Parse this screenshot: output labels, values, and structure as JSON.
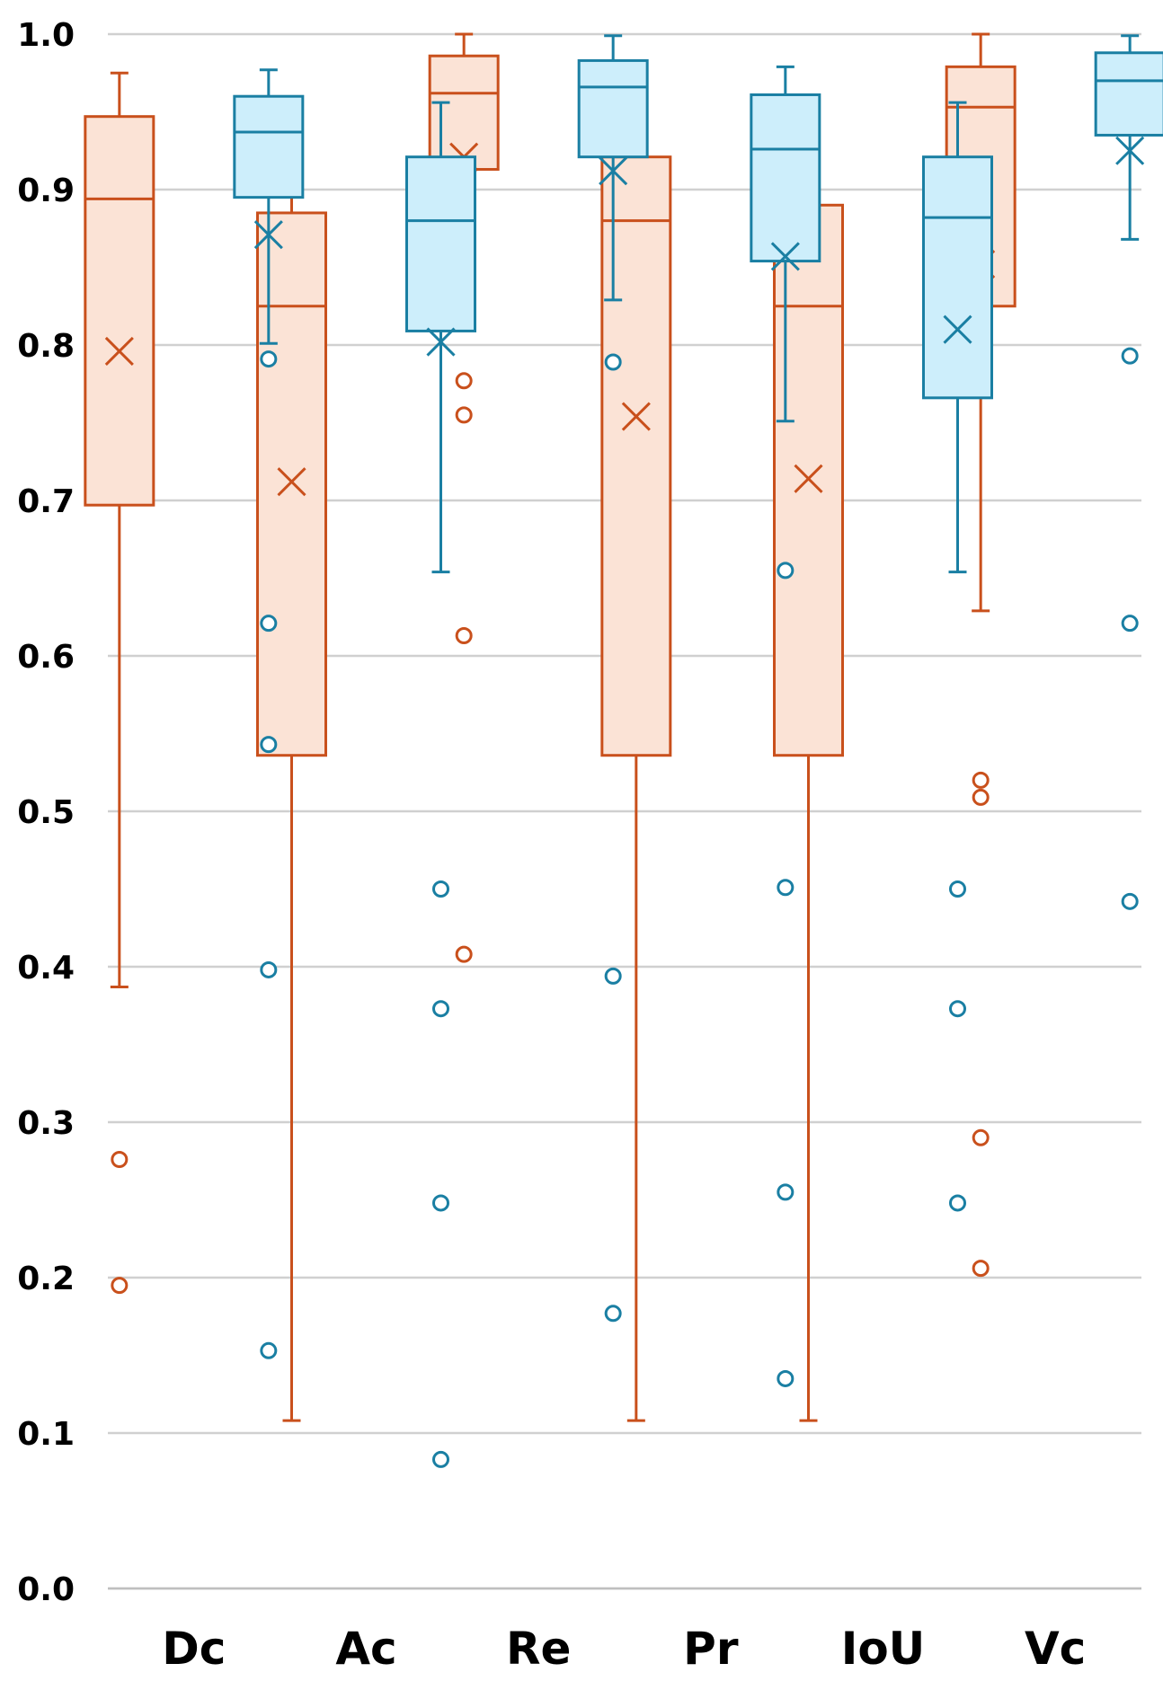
{
  "chart_data": {
    "type": "box",
    "categories": [
      "Dc",
      "Ac",
      "Re",
      "Pr",
      "IoU",
      "Vc"
    ],
    "ylim": [
      0.0,
      1.0
    ],
    "yticks": [
      "0.0",
      "0.1",
      "0.2",
      "0.3",
      "0.4",
      "0.5",
      "0.6",
      "0.7",
      "0.8",
      "0.9",
      "1.0"
    ],
    "grid": true,
    "legend": "none",
    "series": [
      {
        "color": "#c9501c",
        "fill": "#fbe3d6",
        "boxes": [
          {
            "category": "Dc",
            "whisker_low": 0.387,
            "q1": 0.697,
            "median": 0.894,
            "q3": 0.947,
            "whisker_high": 0.975,
            "mean": 0.796,
            "outliers": [
              0.276,
              0.195
            ]
          },
          {
            "category": "Ac",
            "whisker_low": 0.108,
            "q1": 0.536,
            "median": 0.825,
            "q3": 0.885,
            "whisker_high": 0.952,
            "mean": 0.712,
            "outliers": []
          },
          {
            "category": "Re",
            "whisker_low": 0.866,
            "q1": 0.913,
            "median": 0.962,
            "q3": 0.986,
            "whisker_high": 1.0,
            "mean": 0.921,
            "outliers": [
              0.777,
              0.755,
              0.613,
              0.408
            ]
          },
          {
            "category": "Pr",
            "whisker_low": 0.108,
            "q1": 0.536,
            "median": 0.88,
            "q3": 0.921,
            "whisker_high": 0.976,
            "mean": 0.754,
            "outliers": []
          },
          {
            "category": "IoU",
            "whisker_low": 0.108,
            "q1": 0.536,
            "median": 0.825,
            "q3": 0.89,
            "whisker_high": 0.952,
            "mean": 0.714,
            "outliers": []
          },
          {
            "category": "Vc",
            "whisker_low": 0.629,
            "q1": 0.825,
            "median": 0.953,
            "q3": 0.979,
            "whisker_high": 1.0,
            "mean": 0.852,
            "outliers": [
              0.52,
              0.509,
              0.29,
              0.206
            ]
          }
        ]
      },
      {
        "color": "#1a7fa3",
        "fill": "#cdeefb",
        "boxes": [
          {
            "category": "Dc",
            "whisker_low": 0.801,
            "q1": 0.895,
            "median": 0.937,
            "q3": 0.96,
            "whisker_high": 0.977,
            "mean": 0.871,
            "outliers": [
              0.791,
              0.621,
              0.543,
              0.398,
              0.153
            ]
          },
          {
            "category": "Ac",
            "whisker_low": 0.654,
            "q1": 0.809,
            "median": 0.88,
            "q3": 0.921,
            "whisker_high": 0.956,
            "mean": 0.802,
            "outliers": [
              0.45,
              0.373,
              0.248,
              0.083
            ]
          },
          {
            "category": "Re",
            "whisker_low": 0.829,
            "q1": 0.921,
            "median": 0.966,
            "q3": 0.983,
            "whisker_high": 0.999,
            "mean": 0.912,
            "outliers": [
              0.789,
              0.394,
              0.177
            ]
          },
          {
            "category": "Pr",
            "whisker_low": 0.751,
            "q1": 0.854,
            "median": 0.926,
            "q3": 0.961,
            "whisker_high": 0.979,
            "mean": 0.857,
            "outliers": [
              0.655,
              0.451,
              0.255,
              0.135
            ]
          },
          {
            "category": "IoU",
            "whisker_low": 0.654,
            "q1": 0.766,
            "median": 0.882,
            "q3": 0.921,
            "whisker_high": 0.956,
            "mean": 0.81,
            "outliers": [
              0.45,
              0.373,
              0.248
            ]
          },
          {
            "category": "Vc",
            "whisker_low": 0.868,
            "q1": 0.935,
            "median": 0.97,
            "q3": 0.988,
            "whisker_high": 0.999,
            "mean": 0.925,
            "outliers": [
              0.793,
              0.621,
              0.442
            ]
          }
        ]
      }
    ]
  }
}
